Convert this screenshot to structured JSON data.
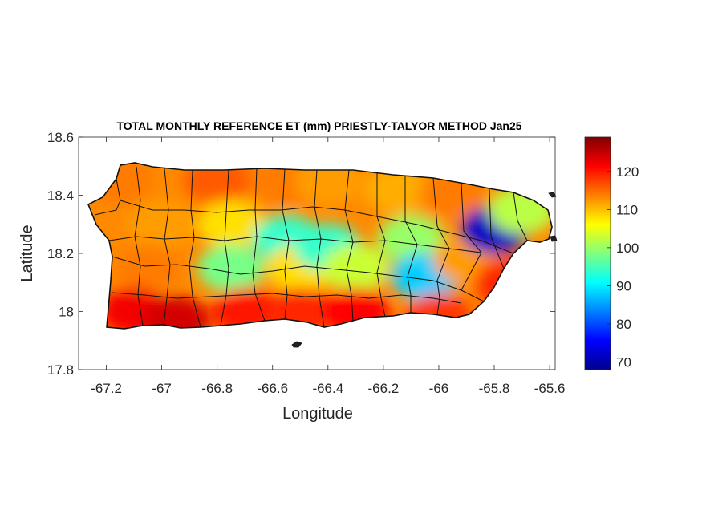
{
  "chart_data": {
    "type": "heatmap",
    "title": "TOTAL MONTHLY REFERENCE ET (mm) PRIESTLY-TALYOR METHOD Jan25",
    "xlabel": "Longitude",
    "ylabel": "Latitude",
    "xlim": [
      -67.3,
      -65.58
    ],
    "ylim": [
      17.8,
      18.6
    ],
    "xticks": [
      -67.2,
      -67,
      -66.8,
      -66.6,
      -66.4,
      -66.2,
      -66,
      -65.8,
      -65.6
    ],
    "xtick_labels": [
      "-67.2",
      "-67",
      "-66.8",
      "-66.6",
      "-66.4",
      "-66.2",
      "-66",
      "-65.8",
      "-65.6"
    ],
    "yticks": [
      17.8,
      18,
      18.2,
      18.4,
      18.6
    ],
    "ytick_labels": [
      "17.8",
      "18",
      "18.2",
      "18.4",
      "18.6"
    ],
    "colorbar": {
      "colormap": "jet",
      "range": [
        68,
        129
      ],
      "ticks": [
        70,
        80,
        90,
        100,
        110,
        120
      ],
      "tick_labels": [
        "70",
        "80",
        "90",
        "100",
        "110",
        "120"
      ]
    },
    "grid": false,
    "regions": [
      {
        "lon": -67.15,
        "lat": 18.45,
        "value": 114
      },
      {
        "lon": -67.0,
        "lat": 18.3,
        "value": 112
      },
      {
        "lon": -67.05,
        "lat": 18.15,
        "value": 114
      },
      {
        "lon": -67.1,
        "lat": 18.0,
        "value": 122
      },
      {
        "lon": -66.95,
        "lat": 17.97,
        "value": 124
      },
      {
        "lon": -66.8,
        "lat": 18.45,
        "value": 116
      },
      {
        "lon": -66.75,
        "lat": 18.3,
        "value": 108
      },
      {
        "lon": -66.75,
        "lat": 18.15,
        "value": 98
      },
      {
        "lon": -66.7,
        "lat": 18.0,
        "value": 120
      },
      {
        "lon": -66.55,
        "lat": 18.45,
        "value": 114
      },
      {
        "lon": -66.55,
        "lat": 18.25,
        "value": 94
      },
      {
        "lon": -66.5,
        "lat": 18.15,
        "value": 108
      },
      {
        "lon": -66.5,
        "lat": 18.0,
        "value": 119
      },
      {
        "lon": -66.4,
        "lat": 18.45,
        "value": 112
      },
      {
        "lon": -66.4,
        "lat": 18.22,
        "value": 94
      },
      {
        "lon": -66.3,
        "lat": 18.15,
        "value": 103
      },
      {
        "lon": -66.3,
        "lat": 18.0,
        "value": 121
      },
      {
        "lon": -66.15,
        "lat": 18.42,
        "value": 111
      },
      {
        "lon": -66.1,
        "lat": 18.25,
        "value": 100
      },
      {
        "lon": -66.05,
        "lat": 18.12,
        "value": 88
      },
      {
        "lon": -66.0,
        "lat": 17.98,
        "value": 118
      },
      {
        "lon": -65.95,
        "lat": 18.4,
        "value": 114
      },
      {
        "lon": -65.9,
        "lat": 18.18,
        "value": 112
      },
      {
        "lon": -65.8,
        "lat": 18.28,
        "value": 72
      },
      {
        "lon": -65.7,
        "lat": 18.35,
        "value": 102
      },
      {
        "lon": -65.75,
        "lat": 18.1,
        "value": 119
      }
    ]
  }
}
